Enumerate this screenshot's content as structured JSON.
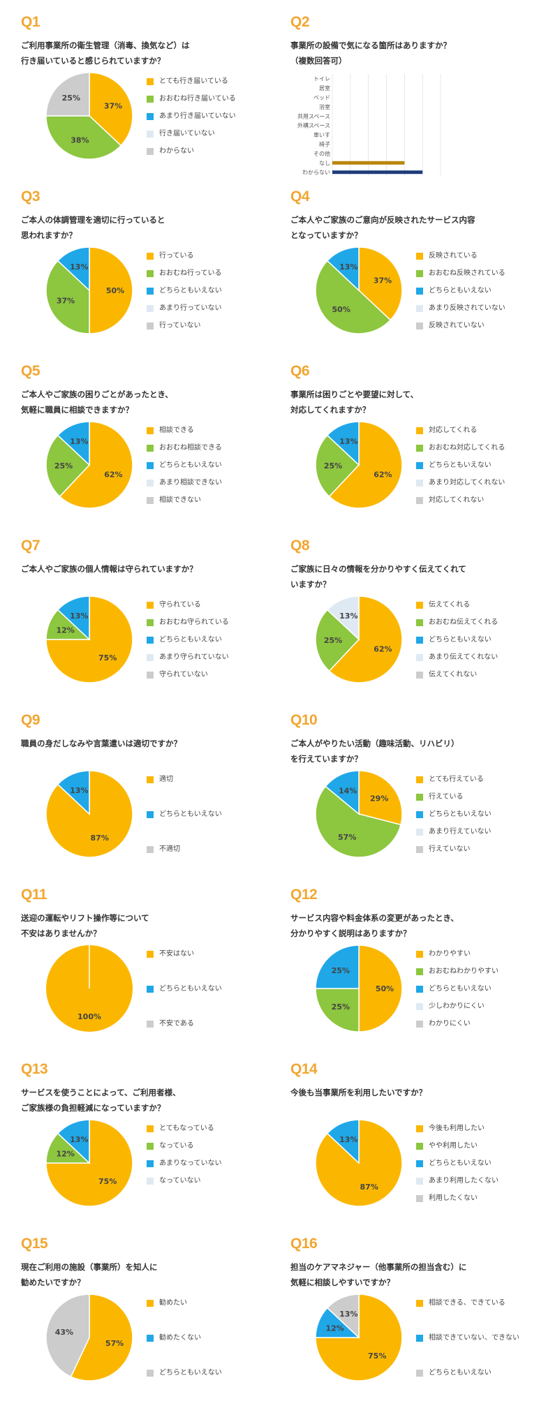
{
  "colors": {
    "orange": "#fbb700",
    "green": "#8dc63f",
    "blue": "#1fa7e8",
    "lightblue": "#dfe9f3",
    "gray": "#cccccc",
    "title": "#f2a630",
    "bar_gold": "#b8860b",
    "bar_navy": "#1f3b7a"
  },
  "chart_data": [
    {
      "id": "Q1",
      "type": "pie",
      "question": "ご利用事業所の衛生管理（消毒、換気など）は\n行き届いていると感じられていますか？",
      "categories": [
        "とても行き届いている",
        "おおむね行き届いている",
        "あまり行き届いていない",
        "行き届いていない",
        "わからない"
      ],
      "colors": [
        "orange",
        "green",
        "blue",
        "lightblue",
        "gray"
      ],
      "values": [
        37,
        38,
        0,
        0,
        25
      ],
      "labels": [
        "37%",
        "38%",
        "",
        "",
        "25%"
      ]
    },
    {
      "id": "Q2",
      "type": "bar",
      "question": "事業所の設備で気になる箇所はありますか？\n（複数回答可）",
      "categories": [
        "トイレ",
        "居室",
        "ベッド",
        "浴室",
        "共用スペース",
        "外構スペース",
        "車いす",
        "椅子",
        "その他",
        "なし",
        "わからない"
      ],
      "values": [
        0,
        0,
        0,
        0,
        0,
        0,
        0,
        0,
        0,
        4,
        5
      ],
      "bar_colors": [
        "bar_gold",
        "bar_gold",
        "bar_gold",
        "bar_gold",
        "bar_gold",
        "bar_gold",
        "bar_gold",
        "bar_gold",
        "bar_gold",
        "bar_gold",
        "bar_navy"
      ],
      "xlim": [
        0,
        6
      ],
      "grid": true
    },
    {
      "id": "Q3",
      "type": "pie",
      "question": "ご本人の体調管理を適切に行っていると\n思われますか？",
      "categories": [
        "行っている",
        "おおむね行っている",
        "どちらともいえない",
        "あまり行っていない",
        "行っていない"
      ],
      "colors": [
        "orange",
        "green",
        "blue",
        "lightblue",
        "gray"
      ],
      "values": [
        50,
        37,
        13,
        0,
        0
      ],
      "labels": [
        "50%",
        "37%",
        "13%",
        "",
        ""
      ]
    },
    {
      "id": "Q4",
      "type": "pie",
      "question": "ご本人やご家族のご意向が反映されたサービス内容\nとなっていますか？",
      "categories": [
        "反映されている",
        "おおむね反映されている",
        "どちらともいえない",
        "あまり反映されていない",
        "反映されていない"
      ],
      "colors": [
        "orange",
        "green",
        "blue",
        "lightblue",
        "gray"
      ],
      "values": [
        37,
        50,
        13,
        0,
        0
      ],
      "labels": [
        "37%",
        "50%",
        "13%",
        "",
        ""
      ]
    },
    {
      "id": "Q5",
      "type": "pie",
      "question": "ご本人やご家族の困りごとがあったとき、\n気軽に職員に相談できますか？",
      "categories": [
        "相談できる",
        "おおむね相談できる",
        "どちらともいえない",
        "あまり相談できない",
        "相談できない"
      ],
      "colors": [
        "orange",
        "green",
        "blue",
        "lightblue",
        "gray"
      ],
      "values": [
        62,
        25,
        13,
        0,
        0
      ],
      "labels": [
        "62%",
        "25%",
        "13%",
        "",
        ""
      ]
    },
    {
      "id": "Q6",
      "type": "pie",
      "question": "事業所は困りごとや要望に対して、\n対応してくれますか？",
      "categories": [
        "対応してくれる",
        "おおむね対応してくれる",
        "どちらともいえない",
        "あまり対応してくれない",
        "対応してくれない"
      ],
      "colors": [
        "orange",
        "green",
        "blue",
        "lightblue",
        "gray"
      ],
      "values": [
        62,
        25,
        13,
        0,
        0
      ],
      "labels": [
        "62%",
        "25%",
        "13%",
        "",
        ""
      ]
    },
    {
      "id": "Q7",
      "type": "pie",
      "question": "ご本人やご家族の個人情報は守られていますか？",
      "categories": [
        "守られている",
        "おおむね守られている",
        "どちらともいえない",
        "あまり守られていない",
        "守られていない"
      ],
      "colors": [
        "orange",
        "green",
        "blue",
        "lightblue",
        "gray"
      ],
      "values": [
        75,
        12,
        13,
        0,
        0
      ],
      "labels": [
        "75%",
        "12%",
        "13%",
        "",
        ""
      ]
    },
    {
      "id": "Q8",
      "type": "pie",
      "question": "ご家族に日々の情報を分かりやすく伝えてくれて\nいますか？",
      "categories": [
        "伝えてくれる",
        "おおむね伝えてくれる",
        "どちらともいえない",
        "あまり伝えてくれない",
        "伝えてくれない"
      ],
      "colors": [
        "orange",
        "green",
        "blue",
        "lightblue",
        "gray"
      ],
      "values": [
        62,
        25,
        0,
        13,
        0
      ],
      "labels": [
        "62%",
        "25%",
        "",
        "13%",
        ""
      ]
    },
    {
      "id": "Q9",
      "type": "pie",
      "question": "職員の身だしなみや言葉遣いは適切ですか？",
      "categories": [
        "適切",
        "どちらともいえない",
        "不適切"
      ],
      "colors": [
        "orange",
        "blue",
        "gray"
      ],
      "values": [
        87,
        13,
        0
      ],
      "labels": [
        "87%",
        "13%",
        ""
      ]
    },
    {
      "id": "Q10",
      "type": "pie",
      "question": "ご本人がやりたい活動（趣味活動、リハビリ）\nを行えていますか？",
      "categories": [
        "とても行えている",
        "行えている",
        "どちらともいえない",
        "あまり行えていない",
        "行えていない"
      ],
      "colors": [
        "orange",
        "green",
        "blue",
        "lightblue",
        "gray"
      ],
      "values": [
        29,
        57,
        14,
        0,
        0
      ],
      "labels": [
        "29%",
        "57%",
        "14%",
        "",
        ""
      ]
    },
    {
      "id": "Q11",
      "type": "pie",
      "question": "送迎の運転やリフト操作等について\n不安はありませんか？",
      "categories": [
        "不安はない",
        "どちらともいえない",
        "不安である"
      ],
      "colors": [
        "orange",
        "blue",
        "gray"
      ],
      "values": [
        100,
        0,
        0
      ],
      "labels": [
        "100%",
        "",
        ""
      ]
    },
    {
      "id": "Q12",
      "type": "pie",
      "question": "サービス内容や料金体系の変更があったとき、\n分かりやすく説明はありますか？",
      "categories": [
        "わかりやすい",
        "おおむねわかりやすい",
        "どちらともいえない",
        "少しわかりにくい",
        "わかりにくい"
      ],
      "colors": [
        "orange",
        "green",
        "blue",
        "lightblue",
        "gray"
      ],
      "values": [
        50,
        25,
        25,
        0,
        0
      ],
      "labels": [
        "50%",
        "25%",
        "25%",
        "",
        ""
      ]
    },
    {
      "id": "Q13",
      "type": "pie",
      "question": "サービスを使うことによって、ご利用者様、\nご家族様の負担軽減になっていますか？",
      "categories": [
        "とてもなっている",
        "なっている",
        "あまりなっていない",
        "なっていない"
      ],
      "colors": [
        "orange",
        "green",
        "blue",
        "lightblue"
      ],
      "values": [
        75,
        12,
        13,
        0
      ],
      "labels": [
        "75%",
        "12%",
        "13%",
        ""
      ]
    },
    {
      "id": "Q14",
      "type": "pie",
      "question": "今後も当事業所を利用したいですか？",
      "categories": [
        "今後も利用したい",
        "やや利用したい",
        "どちらともいえない",
        "あまり利用したくない",
        "利用したくない"
      ],
      "colors": [
        "orange",
        "green",
        "blue",
        "lightblue",
        "gray"
      ],
      "values": [
        87,
        0,
        13,
        0,
        0
      ],
      "labels": [
        "87%",
        "",
        "13%",
        "",
        ""
      ]
    },
    {
      "id": "Q15",
      "type": "pie",
      "question": "現在ご利用の施設（事業所）を知人に\n勧めたいですか？",
      "categories": [
        "勧めたい",
        "勧めたくない",
        "どちらともいえない"
      ],
      "colors": [
        "orange",
        "blue",
        "gray"
      ],
      "values": [
        57,
        0,
        43
      ],
      "labels": [
        "57%",
        "",
        "43%"
      ]
    },
    {
      "id": "Q16",
      "type": "pie",
      "question": "担当のケアマネジャー（他事業所の担当含む）に\n気軽に相談しやすいですか？",
      "categories": [
        "相談できる、できている",
        "相談できていない、できない",
        "どちらともいえない"
      ],
      "colors": [
        "orange",
        "blue",
        "gray"
      ],
      "values": [
        75,
        12,
        13
      ],
      "labels": [
        "75%",
        "12%",
        "13%"
      ]
    }
  ]
}
